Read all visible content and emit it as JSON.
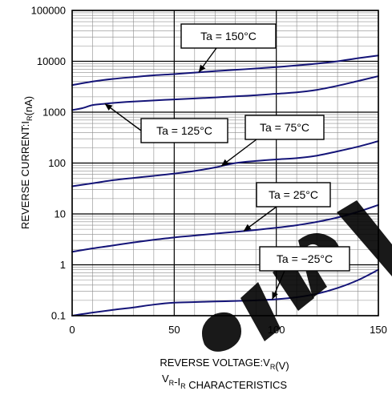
{
  "chart_data": {
    "type": "line",
    "title": "VR-IR CHARACTERISTICS",
    "xlabel": "REVERSE VOLTAGE:VR(V)",
    "ylabel": "REVERSE CURRENT:IR(nA)",
    "xlim": [
      0,
      150
    ],
    "ylim": [
      0.1,
      100000
    ],
    "yscale": "log",
    "x_ticks": [
      "0",
      "50",
      "100",
      "150"
    ],
    "y_ticks": [
      "0.1",
      "1",
      "10",
      "100",
      "1000",
      "10000",
      "100000"
    ],
    "grid": true,
    "line_color": "#141478",
    "series": [
      {
        "name": "Ta = 150°C",
        "x": [
          0,
          10,
          20,
          30,
          40,
          50,
          60,
          70,
          80,
          90,
          100,
          110,
          120,
          130,
          140,
          150
        ],
        "y": [
          3400,
          4000,
          4500,
          4900,
          5300,
          5600,
          6000,
          6400,
          6800,
          7200,
          7700,
          8300,
          9000,
          10000,
          11500,
          13000
        ]
      },
      {
        "name": "Ta = 125°C",
        "x": [
          0,
          5,
          10,
          15,
          20,
          30,
          40,
          50,
          60,
          70,
          80,
          90,
          100,
          110,
          120,
          130,
          140,
          150
        ],
        "y": [
          1100,
          1200,
          1380,
          1450,
          1520,
          1620,
          1700,
          1780,
          1860,
          1950,
          2050,
          2150,
          2300,
          2450,
          2750,
          3300,
          4100,
          5100
        ]
      },
      {
        "name": "Ta = 75°C",
        "x": [
          0,
          10,
          20,
          30,
          40,
          50,
          60,
          70,
          80,
          90,
          100,
          110,
          120,
          130,
          140,
          150
        ],
        "y": [
          35,
          40,
          46,
          51,
          56,
          62,
          70,
          82,
          100,
          110,
          118,
          125,
          140,
          170,
          210,
          270
        ]
      },
      {
        "name": "Ta = 25°C",
        "x": [
          0,
          10,
          20,
          30,
          40,
          50,
          60,
          70,
          80,
          90,
          100,
          110,
          120,
          130,
          140,
          150
        ],
        "y": [
          1.8,
          2.1,
          2.4,
          2.75,
          3.1,
          3.45,
          3.75,
          4.1,
          4.45,
          4.85,
          5.35,
          6.0,
          7.0,
          8.5,
          11.0,
          15.0
        ]
      },
      {
        "name": "Ta = −25°C",
        "x": [
          0,
          10,
          20,
          30,
          40,
          50,
          60,
          70,
          80,
          90,
          100,
          110,
          120,
          130,
          140,
          150
        ],
        "y": [
          0.1,
          0.115,
          0.13,
          0.145,
          0.165,
          0.18,
          0.185,
          0.19,
          0.195,
          0.2,
          0.21,
          0.23,
          0.27,
          0.35,
          0.5,
          0.8
        ]
      }
    ],
    "annotations": [
      {
        "text": "Ta = 150°C",
        "series": 0,
        "at_x": 62
      },
      {
        "text": "Ta = 125°C",
        "series": 1,
        "at_x": 16
      },
      {
        "text": "Ta = 75°C",
        "series": 2,
        "at_x": 73
      },
      {
        "text": "Ta = 25°C",
        "series": 3,
        "at_x": 84
      },
      {
        "text": "Ta = −25°C",
        "series": 4,
        "at_x": 98
      }
    ],
    "watermark": "alldatasheet"
  }
}
